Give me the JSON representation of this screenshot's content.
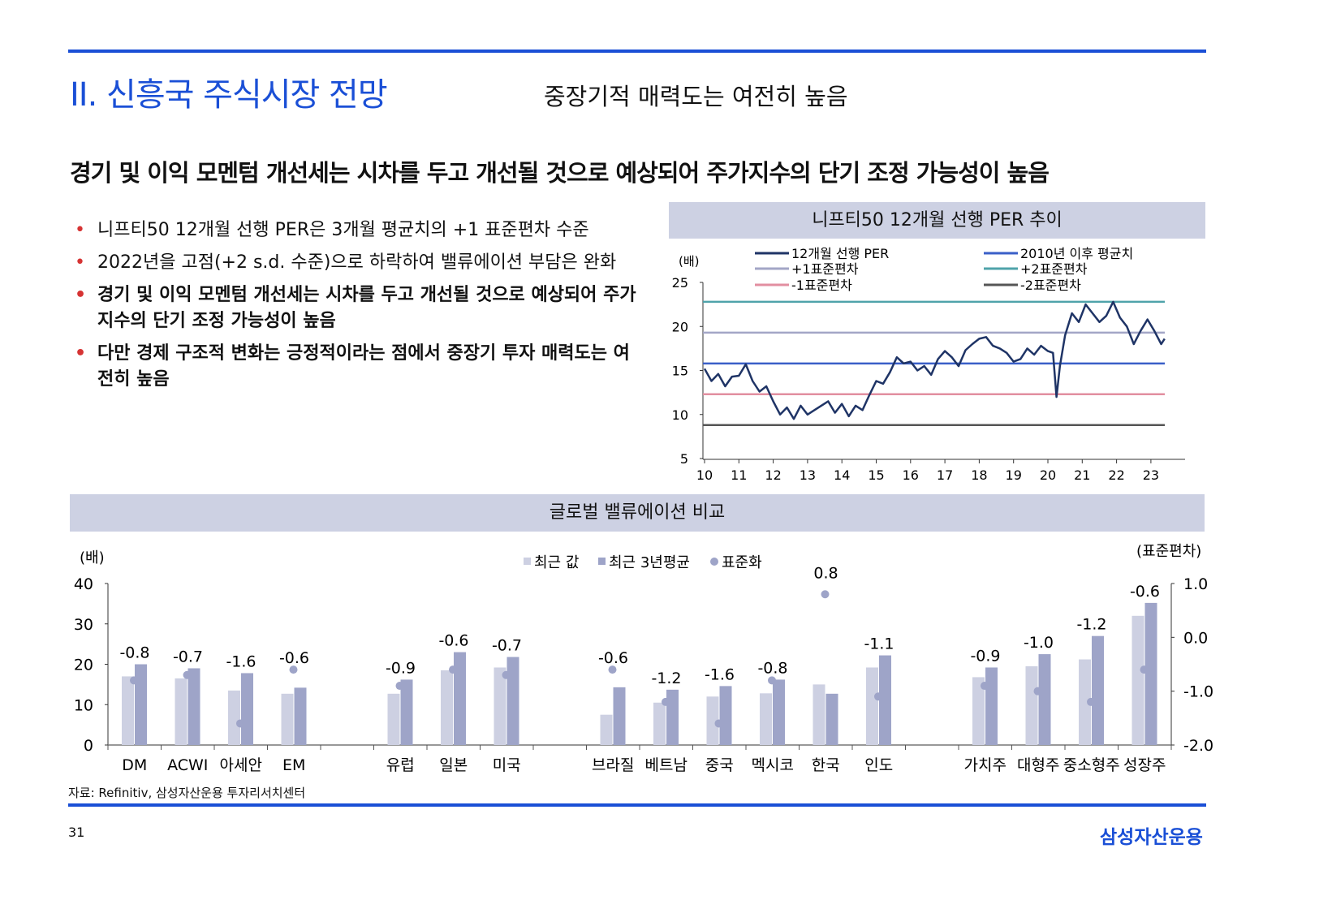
{
  "header": {
    "section_title": "II. 신흥국 주식시장 전망",
    "sub_title": "중장기적 매력도는 여전히 높음"
  },
  "headline": "경기 및 이익 모멘텀 개선세는 시차를 두고 개선될 것으로 예상되어 주가지수의 단기 조정 가능성이 높음",
  "bullets": [
    {
      "text": "니프티50 12개월 선행 PER은 3개월 평균치의 +1 표준편차 수준",
      "bold": false
    },
    {
      "text": "2022년을 고점(+2 s.d. 수준)으로 하락하여 밸류에이션 부담은 완화",
      "bold": false
    },
    {
      "text": "경기 및 이익 모멘텀 개선세는 시차를 두고 개선될 것으로 예상되어 주가지수의 단기 조정 가능성이 높음",
      "bold": true
    },
    {
      "text": "다만 경제 구조적 변화는 긍정적이라는 점에서 중장기 투자 매력도는 여전히 높음",
      "bold": true
    }
  ],
  "footer": {
    "source": "자료: Refinitiv, 삼성자산운용 투자리서치센터",
    "page_number": "31",
    "logo": "삼성자산운용"
  },
  "chart_data": [
    {
      "type": "line",
      "title": "니프티50 12개월 선행 PER 추이",
      "ylabel": "(배)",
      "ylim": [
        5,
        25
      ],
      "yticks": [
        "5",
        "10",
        "15",
        "20",
        "25"
      ],
      "xlim": [
        2010,
        2024
      ],
      "xticks": [
        "10",
        "11",
        "12",
        "13",
        "14",
        "15",
        "16",
        "17",
        "18",
        "19",
        "20",
        "21",
        "22",
        "23"
      ],
      "legend": [
        "12개월 선행 PER",
        "2010년 이후 평균치",
        "+1표준편차",
        "+2표준편차",
        "-1표준편차",
        "-2표준편차"
      ],
      "colors": {
        "per": "#1f3466",
        "mean": "#3a5fc8",
        "plus1": "#a3a6c6",
        "plus2": "#4fa3aa",
        "minus1": "#e28fa0",
        "minus2": "#555555"
      },
      "reference_lines": {
        "mean": 15.8,
        "plus1": 19.3,
        "plus2": 22.8,
        "minus1": 12.3,
        "minus2": 8.8
      },
      "series": {
        "name": "12개월 선행 PER",
        "x": [
          2010.0,
          2010.2,
          2010.4,
          2010.6,
          2010.8,
          2011.0,
          2011.2,
          2011.4,
          2011.6,
          2011.8,
          2012.0,
          2012.2,
          2012.4,
          2012.6,
          2012.8,
          2013.0,
          2013.2,
          2013.4,
          2013.6,
          2013.8,
          2014.0,
          2014.2,
          2014.4,
          2014.6,
          2014.8,
          2015.0,
          2015.2,
          2015.4,
          2015.6,
          2015.8,
          2016.0,
          2016.2,
          2016.4,
          2016.6,
          2016.8,
          2017.0,
          2017.2,
          2017.4,
          2017.6,
          2017.8,
          2018.0,
          2018.2,
          2018.4,
          2018.6,
          2018.8,
          2019.0,
          2019.2,
          2019.4,
          2019.6,
          2019.8,
          2020.0,
          2020.15,
          2020.25,
          2020.35,
          2020.5,
          2020.7,
          2020.9,
          2021.1,
          2021.3,
          2021.5,
          2021.7,
          2021.9,
          2022.1,
          2022.3,
          2022.5,
          2022.7,
          2022.9,
          2023.1,
          2023.3,
          2023.4
        ],
        "y": [
          15.2,
          13.8,
          14.6,
          13.2,
          14.3,
          14.4,
          15.7,
          13.8,
          12.6,
          13.2,
          11.5,
          10.0,
          10.8,
          9.5,
          11.0,
          10.0,
          10.5,
          11.0,
          11.5,
          10.2,
          11.2,
          9.8,
          11.0,
          10.5,
          12.2,
          13.8,
          13.5,
          14.8,
          16.5,
          15.8,
          16.0,
          15.0,
          15.5,
          14.5,
          16.3,
          17.2,
          16.5,
          15.5,
          17.3,
          18.0,
          18.6,
          18.8,
          17.8,
          17.5,
          17.0,
          16.0,
          16.3,
          17.5,
          16.8,
          17.8,
          17.2,
          17.0,
          12.0,
          15.5,
          19.0,
          21.5,
          20.5,
          22.5,
          21.5,
          20.5,
          21.2,
          22.8,
          21.0,
          20.0,
          18.0,
          19.5,
          20.8,
          19.5,
          18.0,
          18.6
        ]
      }
    },
    {
      "type": "bar",
      "title": "글로벌 밸류에이션 비교",
      "ylabel": "(배)",
      "y2label": "(표준편차)",
      "ylim": [
        0,
        40
      ],
      "y2lim": [
        -2.0,
        1.0
      ],
      "yticks": [
        "0",
        "10",
        "20",
        "30",
        "40"
      ],
      "y2ticks": [
        "-2.0",
        "-1.0",
        "0.0",
        "1.0"
      ],
      "legend": [
        "최근 값",
        "최근 3년평균",
        "표준화"
      ],
      "colors": {
        "recent": "#cdd0e2",
        "avg3y": "#9ea4c8",
        "zscore": "#9ea4c8"
      },
      "categories": [
        "DM",
        "ACWI",
        "아세안",
        "EM",
        "",
        "유럽",
        "일본",
        "미국",
        "",
        "브라질",
        "베트남",
        "중국",
        "멕시코",
        "한국",
        "인도",
        "",
        "가치주",
        "대형주",
        "중소형주",
        "성장주"
      ],
      "series": [
        {
          "name": "최근 값",
          "values": [
            17.0,
            16.5,
            13.5,
            12.7,
            null,
            12.7,
            18.5,
            19.2,
            null,
            7.5,
            10.5,
            12.0,
            12.8,
            15.0,
            19.2,
            null,
            16.8,
            19.5,
            21.2,
            32.0
          ]
        },
        {
          "name": "최근 3년평균",
          "values": [
            20.0,
            19.0,
            17.8,
            14.2,
            null,
            16.2,
            23.0,
            21.8,
            null,
            14.3,
            13.7,
            14.6,
            16.2,
            12.7,
            22.2,
            null,
            19.2,
            22.5,
            27.0,
            35.2
          ]
        },
        {
          "name": "표준화",
          "values": [
            -0.8,
            -0.7,
            -1.6,
            -0.6,
            null,
            -0.9,
            -0.6,
            -0.7,
            null,
            -0.6,
            -1.2,
            -1.6,
            -0.8,
            0.8,
            -1.1,
            null,
            -0.9,
            -1.0,
            -1.2,
            -0.6
          ],
          "labels": [
            "-0.8",
            "-0.7",
            "-1.6",
            "-0.6",
            "",
            "-0.9",
            "-0.6",
            "-0.7",
            "",
            "-0.6",
            "-1.2",
            "-1.6",
            "-0.8",
            "0.8",
            "-1.1",
            "",
            "-0.9",
            "-1.0",
            "-1.2",
            "-0.6"
          ]
        }
      ]
    }
  ]
}
